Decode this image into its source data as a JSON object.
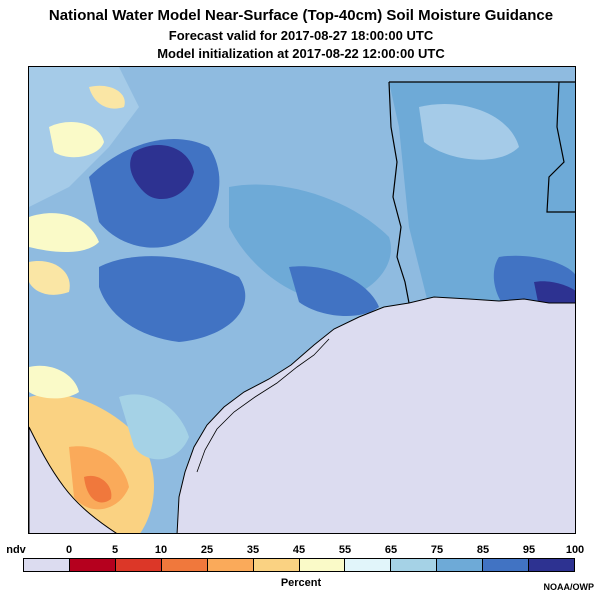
{
  "header": {
    "title": "National Water Model Near-Surface (Top-40cm) Soil Moisture Guidance",
    "subtitle_forecast": "Forecast valid for 2017-08-27 18:00:00 UTC",
    "subtitle_init": "Model initialization at 2017-08-22 12:00:00 UTC"
  },
  "legend": {
    "nodata_label": "ndv",
    "tick_labels": [
      "0",
      "5",
      "10",
      "25",
      "35",
      "45",
      "55",
      "65",
      "75",
      "85",
      "95",
      "100"
    ],
    "colors": [
      "#dcdcf0",
      "#b5001e",
      "#dc3728",
      "#f0783c",
      "#faaa5a",
      "#fad282",
      "#fafac8",
      "#e1f5fa",
      "#a5d2e6",
      "#6eaad7",
      "#4173c3",
      "#2d3291"
    ],
    "units_label": "Percent"
  },
  "credit": "NOAA/OWP",
  "map": {
    "water_color": "#dcdcf0",
    "boundary_color": "#000000"
  }
}
